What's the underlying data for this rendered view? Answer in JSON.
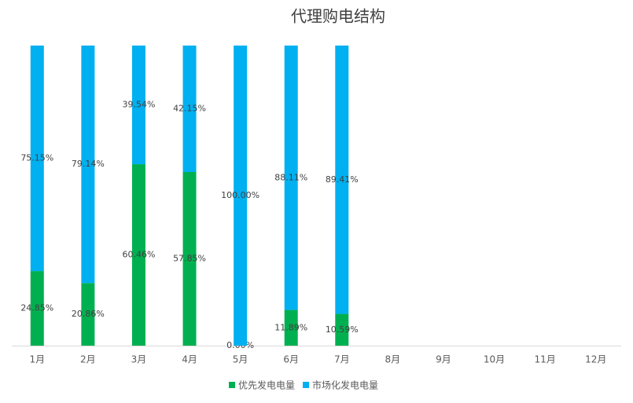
{
  "chart_data": {
    "type": "stacked_bar_100",
    "title": "代理购电结构",
    "categories": [
      "1月",
      "2月",
      "3月",
      "4月",
      "5月",
      "6月",
      "7月",
      "8月",
      "9月",
      "10月",
      "11月",
      "12月"
    ],
    "series": [
      {
        "name": "优先发电电量",
        "color": "#00b050",
        "values": [
          24.85,
          20.86,
          60.46,
          57.85,
          0,
          11.89,
          10.59,
          null,
          null,
          null,
          null,
          null
        ],
        "value_labels": [
          "24.85%",
          "20.86%",
          "60.46%",
          "57.85%",
          "0.00%",
          "11.89%",
          "10.59%",
          null,
          null,
          null,
          null,
          null
        ]
      },
      {
        "name": "市场化发电电量",
        "color": "#00b0f0",
        "values": [
          75.15,
          79.14,
          39.54,
          42.15,
          100,
          88.11,
          89.41,
          null,
          null,
          null,
          null,
          null
        ],
        "value_labels": [
          "75.15%",
          "79.14%",
          "39.54%",
          "42.15%",
          "100.00%",
          "88.11%",
          "89.41%",
          null,
          null,
          null,
          null,
          null
        ]
      }
    ],
    "ylim": [
      0,
      100
    ],
    "legend": "bottom"
  }
}
